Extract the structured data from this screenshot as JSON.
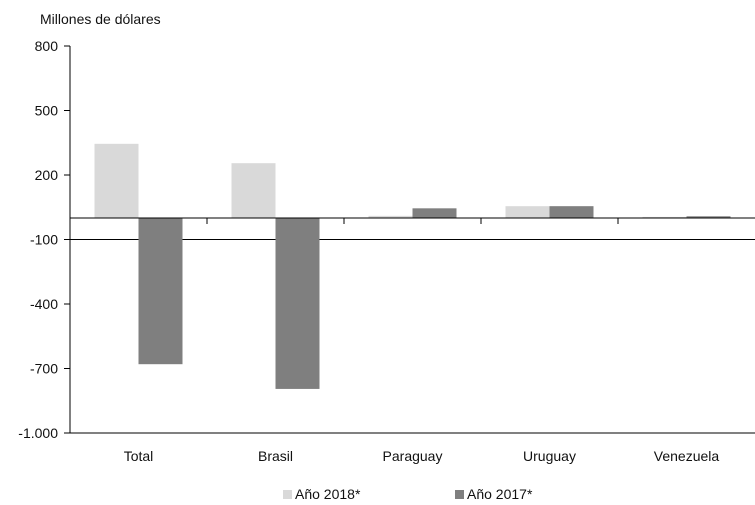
{
  "chart_data": {
    "type": "bar",
    "ylabel": "Millones de dólares",
    "ylim": [
      -1000,
      800
    ],
    "yticks": [
      800,
      500,
      200,
      -100,
      -400,
      -700,
      -1000
    ],
    "ytick_labels": [
      "800",
      "500",
      "200",
      "-100",
      "-400",
      "-700",
      "-1.000"
    ],
    "categories": [
      "Total",
      "Brasil",
      "Paraguay",
      "Uruguay",
      "Venezuela"
    ],
    "series": [
      {
        "name": "Año 2018*",
        "color": "#d9d9d9",
        "values": [
          345,
          255,
          10,
          55,
          5
        ]
      },
      {
        "name": "Año 2017*",
        "color": "#7f7f7f",
        "values": [
          -680,
          -795,
          45,
          55,
          8
        ]
      }
    ],
    "grid": false,
    "legend_position": "bottom-center"
  }
}
